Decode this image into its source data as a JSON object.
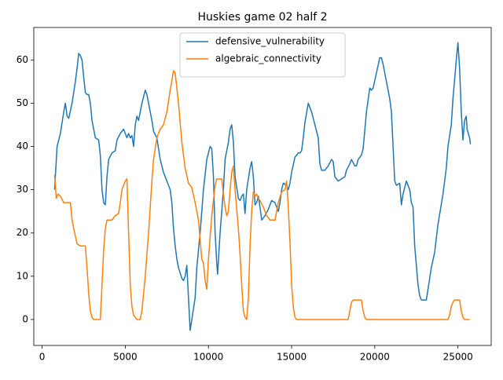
{
  "chart_data": {
    "type": "line",
    "title": "Huskies game 02 half 2",
    "xlim": [
      -500,
      27000
    ],
    "xticks": [
      0,
      5000,
      10000,
      15000,
      20000,
      25000
    ],
    "ylim": [
      -6,
      67.5
    ],
    "yticks": [
      0,
      10,
      20,
      30,
      40,
      50,
      60
    ],
    "legend": "upper center",
    "series": [
      {
        "name": "defensive_vulnerability",
        "color": "#1f77b4",
        "x": [
          750,
          900,
          1100,
          1300,
          1400,
          1500,
          1600,
          1800,
          2000,
          2100,
          2200,
          2300,
          2400,
          2500,
          2600,
          2700,
          2800,
          2900,
          3000,
          3200,
          3400,
          3500,
          3600,
          3700,
          3800,
          3900,
          4000,
          4200,
          4400,
          4500,
          4700,
          4900,
          5000,
          5100,
          5200,
          5300,
          5400,
          5500,
          5600,
          5700,
          5800,
          5900,
          6000,
          6200,
          6300,
          6400,
          6600,
          6700,
          6900,
          7100,
          7300,
          7500,
          7700,
          7800,
          7900,
          8000,
          8100,
          8200,
          8400,
          8500,
          8600,
          8700,
          8800,
          8900,
          9000,
          9200,
          9300,
          9500,
          9700,
          9900,
          10100,
          10200,
          10300,
          10400,
          10500,
          10550,
          10700,
          10900,
          11000,
          11200,
          11300,
          11400,
          11500,
          11600,
          11800,
          11900,
          12000,
          12100,
          12200,
          12300,
          12500,
          12600,
          12700,
          12800,
          12900,
          13000,
          13100,
          13200,
          13400,
          13600,
          13800,
          14000,
          14200,
          14300,
          14400,
          14500,
          14700,
          14800,
          14900,
          15000,
          15200,
          15400,
          15500,
          15600,
          15700,
          15800,
          16000,
          16200,
          16400,
          16600,
          16700,
          16800,
          17000,
          17200,
          17400,
          17500,
          17600,
          17800,
          18000,
          18200,
          18300,
          18500,
          18600,
          18800,
          18900,
          19000,
          19200,
          19300,
          19500,
          19700,
          19800,
          19900,
          20100,
          20300,
          20400,
          20500,
          20700,
          20900,
          21000,
          21100,
          21200,
          21300,
          21500,
          21600,
          21700,
          21900,
          22000,
          22100,
          22200,
          22300,
          22400,
          22600,
          22700,
          22800,
          23000,
          23100,
          23200,
          23400,
          23600,
          23800,
          24100,
          24300,
          24400,
          24600,
          24700,
          24900,
          25000,
          25100,
          25200,
          25300,
          25400,
          25500,
          25550,
          25700,
          25750
        ],
        "values": [
          30,
          40,
          43,
          48,
          50,
          47,
          46.5,
          50,
          55,
          58,
          61.5,
          61,
          60,
          56,
          52.5,
          52,
          52,
          50,
          46,
          42,
          41.5,
          38,
          30,
          27,
          26.5,
          33,
          37,
          38.5,
          39,
          41.5,
          43,
          44,
          43,
          42,
          43,
          42,
          42.5,
          40,
          45,
          47,
          46,
          48,
          50,
          53,
          52,
          50,
          46,
          43.5,
          42,
          37,
          34,
          32,
          30,
          27,
          21,
          17,
          14,
          12,
          9.5,
          9,
          10,
          12.5,
          5,
          -2.5,
          0,
          5,
          12,
          20,
          30,
          37,
          40,
          39.5,
          33,
          20,
          13,
          10.5,
          20,
          30,
          37,
          41,
          44,
          45,
          41,
          33,
          28,
          27.5,
          28.5,
          29,
          24.5,
          30,
          35,
          36.5,
          33,
          26.5,
          27,
          28.5,
          26,
          23,
          24,
          25.5,
          27.5,
          27,
          25,
          27,
          30,
          31.5,
          31,
          30,
          31.5,
          34,
          37.5,
          38.5,
          38.5,
          39,
          42,
          45.5,
          50,
          48,
          45,
          42,
          36,
          34.5,
          34.5,
          35.5,
          37,
          36.5,
          33,
          32,
          32.5,
          33,
          34.5,
          36,
          37,
          35.5,
          35.5,
          37,
          38,
          39.5,
          48,
          53.5,
          53,
          53.5,
          57,
          60.5,
          60.5,
          59,
          55,
          51,
          48,
          40,
          32,
          31,
          31.5,
          26.5,
          29,
          32,
          31,
          30,
          27,
          26,
          17,
          8,
          5.5,
          4.5,
          4.5,
          4.5,
          7,
          12,
          15.5,
          22,
          29,
          35,
          40,
          45,
          51,
          60,
          64,
          58,
          48,
          41.5,
          46,
          47,
          44,
          42,
          40.5
        ]
      },
      {
        "name": "algebraic_connectivity",
        "color": "#ff7f0e",
        "x": [
          750,
          850,
          950,
          1100,
          1300,
          1500,
          1700,
          1800,
          1900,
          2100,
          2300,
          2600,
          2700,
          2800,
          2900,
          3000,
          3100,
          3500,
          3600,
          3700,
          3800,
          3900,
          4200,
          4400,
          4600,
          4700,
          4800,
          5000,
          5100,
          5200,
          5300,
          5400,
          5500,
          5700,
          5900,
          6000,
          6200,
          6400,
          6600,
          6700,
          6900,
          7100,
          7300,
          7500,
          7700,
          7900,
          8000,
          8200,
          8400,
          8600,
          8800,
          9000,
          9200,
          9400,
          9600,
          9700,
          9800,
          9900,
          10000,
          10200,
          10400,
          10500,
          10800,
          10900,
          11000,
          11100,
          11200,
          11300,
          11400,
          11500,
          11600,
          11800,
          11900,
          12000,
          12100,
          12200,
          12300,
          12400,
          12500,
          12600,
          12700,
          12800,
          12900,
          13000,
          13100,
          13300,
          13500,
          13700,
          14000,
          14200,
          14400,
          14600,
          14700,
          14800,
          14900,
          15000,
          15100,
          15200,
          15300,
          18400,
          18500,
          18600,
          18700,
          18800,
          19000,
          19100,
          19200,
          19300,
          19400,
          19500,
          24400,
          24500,
          24600,
          24700,
          24800,
          25100,
          25200,
          25300,
          25400,
          25700
        ],
        "values": [
          33.5,
          28,
          29,
          28.5,
          27,
          27,
          27,
          23,
          21,
          17.5,
          17,
          17,
          12,
          6,
          2,
          0.5,
          0,
          0,
          8,
          16,
          21,
          23,
          23,
          24,
          24.5,
          27,
          30,
          32,
          32.5,
          20,
          8,
          3,
          1,
          0,
          0,
          2,
          10,
          20,
          32,
          37,
          42,
          44,
          45,
          48,
          53,
          57.5,
          57,
          50,
          41,
          35,
          31.5,
          30.5,
          27,
          23,
          14,
          13,
          9,
          7,
          14,
          24,
          31,
          32.5,
          32.5,
          29,
          26,
          24,
          25,
          30,
          34,
          35.5,
          30,
          21,
          15,
          8,
          2,
          0.5,
          0,
          5,
          17,
          25,
          29.5,
          28.5,
          29,
          28,
          27.5,
          26,
          24,
          23,
          23,
          27,
          29.5,
          30,
          32,
          26,
          18,
          8,
          3,
          0.5,
          0,
          0,
          2,
          4,
          4.5,
          4.5,
          4.5,
          4.5,
          4.5,
          2,
          0.5,
          0,
          0,
          1,
          3,
          4,
          4.5,
          4.5,
          2,
          0.5,
          0,
          0
        ]
      }
    ]
  }
}
